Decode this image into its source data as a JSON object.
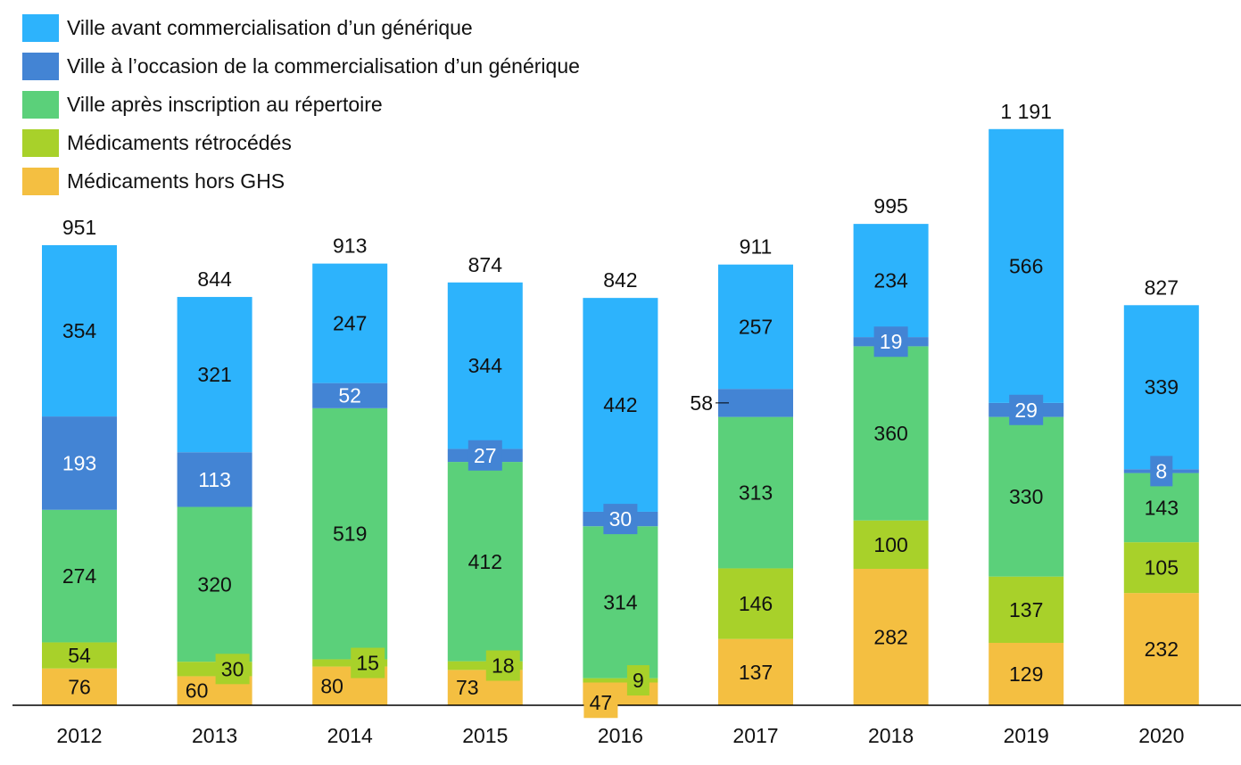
{
  "chart_data": {
    "type": "bar",
    "stacked": true,
    "categories": [
      "2012",
      "2013",
      "2014",
      "2015",
      "2016",
      "2017",
      "2018",
      "2019",
      "2020"
    ],
    "series": [
      {
        "name": "Médicaments hors GHS",
        "color": "#F4BF41",
        "values": [
          76,
          60,
          80,
          73,
          47,
          137,
          282,
          129,
          232
        ]
      },
      {
        "name": "Médicaments rétrocédés",
        "color": "#A8D12A",
        "values": [
          54,
          30,
          15,
          18,
          9,
          146,
          100,
          137,
          105
        ]
      },
      {
        "name": "Ville après inscription au répertoire",
        "color": "#5BD07A",
        "values": [
          274,
          320,
          519,
          412,
          314,
          313,
          360,
          330,
          143
        ]
      },
      {
        "name": "Ville à l’occasion de la commercialisation d’un générique",
        "color": "#4384D4",
        "values": [
          193,
          113,
          52,
          27,
          30,
          58,
          19,
          29,
          8
        ]
      },
      {
        "name": "Ville avant commercialisation d’un générique",
        "color": "#2DB3FC",
        "values": [
          354,
          321,
          247,
          344,
          442,
          257,
          234,
          566,
          339
        ]
      }
    ],
    "totals": [
      "951",
      "844",
      "913",
      "874",
      "842",
      "911",
      "995",
      "1 191",
      "827"
    ],
    "legend_order": [
      4,
      3,
      2,
      1,
      0
    ],
    "legend_position": "top-left",
    "ylim": [
      0,
      1300
    ],
    "grid": false,
    "xlabel": "",
    "ylabel": ""
  }
}
